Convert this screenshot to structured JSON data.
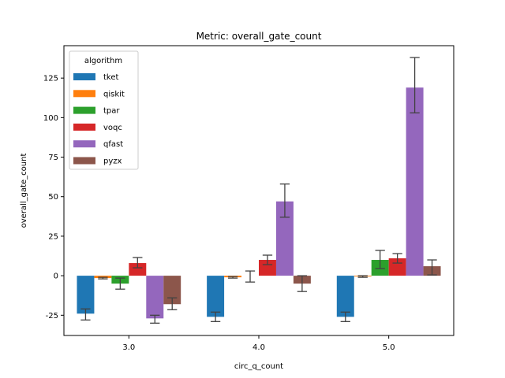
{
  "chart_data": {
    "type": "bar",
    "title": "Metric: overall_gate_count",
    "xlabel": "circ_q_count",
    "ylabel": "overall_gate_count",
    "categories": [
      "3.0",
      "4.0",
      "5.0"
    ],
    "ylim": [
      -37.8,
      145.5
    ],
    "yticks": [
      -25,
      0,
      25,
      50,
      75,
      100,
      125
    ],
    "grid": false,
    "legend": {
      "title": "algorithm",
      "placement": "top-left"
    },
    "series": [
      {
        "name": "tket",
        "color": "#1f77b4",
        "values": [
          -24,
          -26,
          -26
        ],
        "err_low": [
          -28,
          -29,
          -29
        ],
        "err_high": [
          -21,
          -23,
          -23
        ]
      },
      {
        "name": "qiskit",
        "color": "#ff7f0e",
        "values": [
          -1.5,
          -1,
          -0.5
        ],
        "err_low": [
          -2,
          -1.5,
          -1
        ],
        "err_high": [
          -1,
          -0.5,
          0
        ]
      },
      {
        "name": "tpar",
        "color": "#2ca02c",
        "values": [
          -5,
          0,
          10
        ],
        "err_low": [
          -8.5,
          -4,
          4.5
        ],
        "err_high": [
          -1.5,
          3,
          16
        ]
      },
      {
        "name": "voqc",
        "color": "#d62728",
        "values": [
          8,
          10,
          11
        ],
        "err_low": [
          5,
          7,
          8
        ],
        "err_high": [
          11.5,
          13,
          14
        ]
      },
      {
        "name": "qfast",
        "color": "#9467bd",
        "values": [
          -27,
          47,
          119
        ],
        "err_low": [
          -30,
          37,
          103
        ],
        "err_high": [
          -25,
          58,
          138
        ]
      },
      {
        "name": "pyzx",
        "color": "#8c564b",
        "values": [
          -18,
          -5,
          6
        ],
        "err_low": [
          -21.5,
          -10,
          0.5
        ],
        "err_high": [
          -14,
          0,
          10
        ]
      }
    ]
  }
}
